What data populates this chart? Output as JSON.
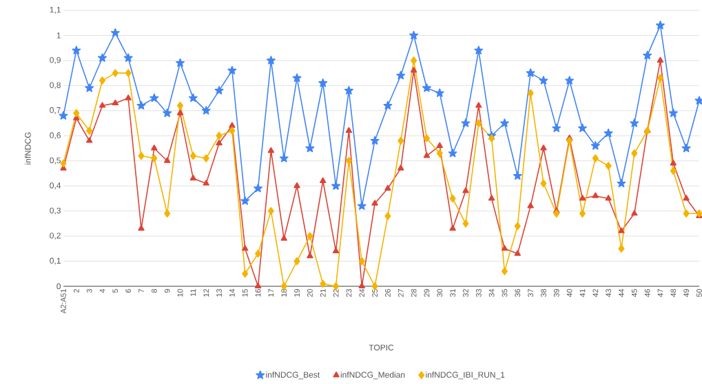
{
  "chart_data": {
    "type": "line",
    "xlabel": "TOPIC",
    "ylabel": "infNDCG",
    "categories": [
      "A2:A51",
      "2",
      "3",
      "4",
      "5",
      "6",
      "7",
      "8",
      "9",
      "10",
      "11",
      "12",
      "13",
      "14",
      "15",
      "16",
      "17",
      "18",
      "19",
      "20",
      "21",
      "22",
      "23",
      "24",
      "25",
      "26",
      "27",
      "28",
      "29",
      "30",
      "31",
      "32",
      "33",
      "34",
      "35",
      "36",
      "37",
      "38",
      "39",
      "40",
      "41",
      "42",
      "43",
      "44",
      "45",
      "46",
      "47",
      "48",
      "49",
      "50"
    ],
    "series": [
      {
        "name": "infNDCG_Best",
        "color": "#4285f4",
        "marker": "star",
        "values": [
          0.68,
          0.94,
          0.79,
          0.91,
          1.01,
          0.91,
          0.72,
          0.75,
          0.69,
          0.89,
          0.75,
          0.7,
          0.78,
          0.86,
          0.34,
          0.39,
          0.9,
          0.51,
          0.83,
          0.55,
          0.81,
          0.4,
          0.78,
          0.32,
          0.58,
          0.72,
          0.84,
          1.0,
          0.79,
          0.77,
          0.53,
          0.65,
          0.94,
          0.6,
          0.65,
          0.44,
          0.85,
          0.82,
          0.63,
          0.82,
          0.63,
          0.56,
          0.61,
          0.41,
          0.65,
          0.92,
          1.04,
          0.69,
          0.55,
          0.74
        ]
      },
      {
        "name": "infNDCG_Median",
        "color": "#db4437",
        "marker": "triangle",
        "values": [
          0.47,
          0.67,
          0.58,
          0.72,
          0.73,
          0.75,
          0.23,
          0.55,
          0.5,
          0.69,
          0.43,
          0.41,
          0.57,
          0.64,
          0.15,
          0.0,
          0.54,
          0.19,
          0.4,
          0.12,
          0.42,
          0.14,
          0.62,
          0.0,
          0.33,
          0.39,
          0.47,
          0.86,
          0.52,
          0.56,
          0.23,
          0.38,
          0.72,
          0.35,
          0.15,
          0.13,
          0.32,
          0.55,
          0.3,
          0.59,
          0.35,
          0.36,
          0.35,
          0.22,
          0.29,
          0.62,
          0.9,
          0.49,
          0.35,
          0.28
        ]
      },
      {
        "name": "infNDCG_IBI_RUN_1",
        "color": "#f4b400",
        "marker": "diamond",
        "values": [
          0.49,
          0.69,
          0.62,
          0.82,
          0.85,
          0.85,
          0.52,
          0.51,
          0.29,
          0.72,
          0.52,
          0.51,
          0.6,
          0.62,
          0.05,
          0.13,
          0.3,
          0.0,
          0.1,
          0.2,
          0.01,
          0.0,
          0.5,
          0.1,
          0.0,
          0.28,
          0.58,
          0.9,
          0.59,
          0.53,
          0.35,
          0.25,
          0.65,
          0.59,
          0.06,
          0.24,
          0.77,
          0.41,
          0.29,
          0.58,
          0.29,
          0.51,
          0.48,
          0.15,
          0.53,
          0.62,
          0.83,
          0.46,
          0.29,
          0.29
        ]
      }
    ],
    "ylim": [
      0,
      1.1
    ],
    "yticks": [
      {
        "value": 0,
        "label": "0"
      },
      {
        "value": 0.1,
        "label": "0,1"
      },
      {
        "value": 0.2,
        "label": "0,2"
      },
      {
        "value": 0.3,
        "label": "0,3"
      },
      {
        "value": 0.4,
        "label": "0,4"
      },
      {
        "value": 0.5,
        "label": "0,5"
      },
      {
        "value": 0.6,
        "label": "0,6"
      },
      {
        "value": 0.7,
        "label": "0,7"
      },
      {
        "value": 0.8,
        "label": "0,8"
      },
      {
        "value": 0.9,
        "label": "0,9"
      },
      {
        "value": 1,
        "label": "1"
      },
      {
        "value": 1.1,
        "label": "1,1"
      }
    ],
    "grid": "y",
    "legend": "bottom",
    "line_style": "solid"
  }
}
